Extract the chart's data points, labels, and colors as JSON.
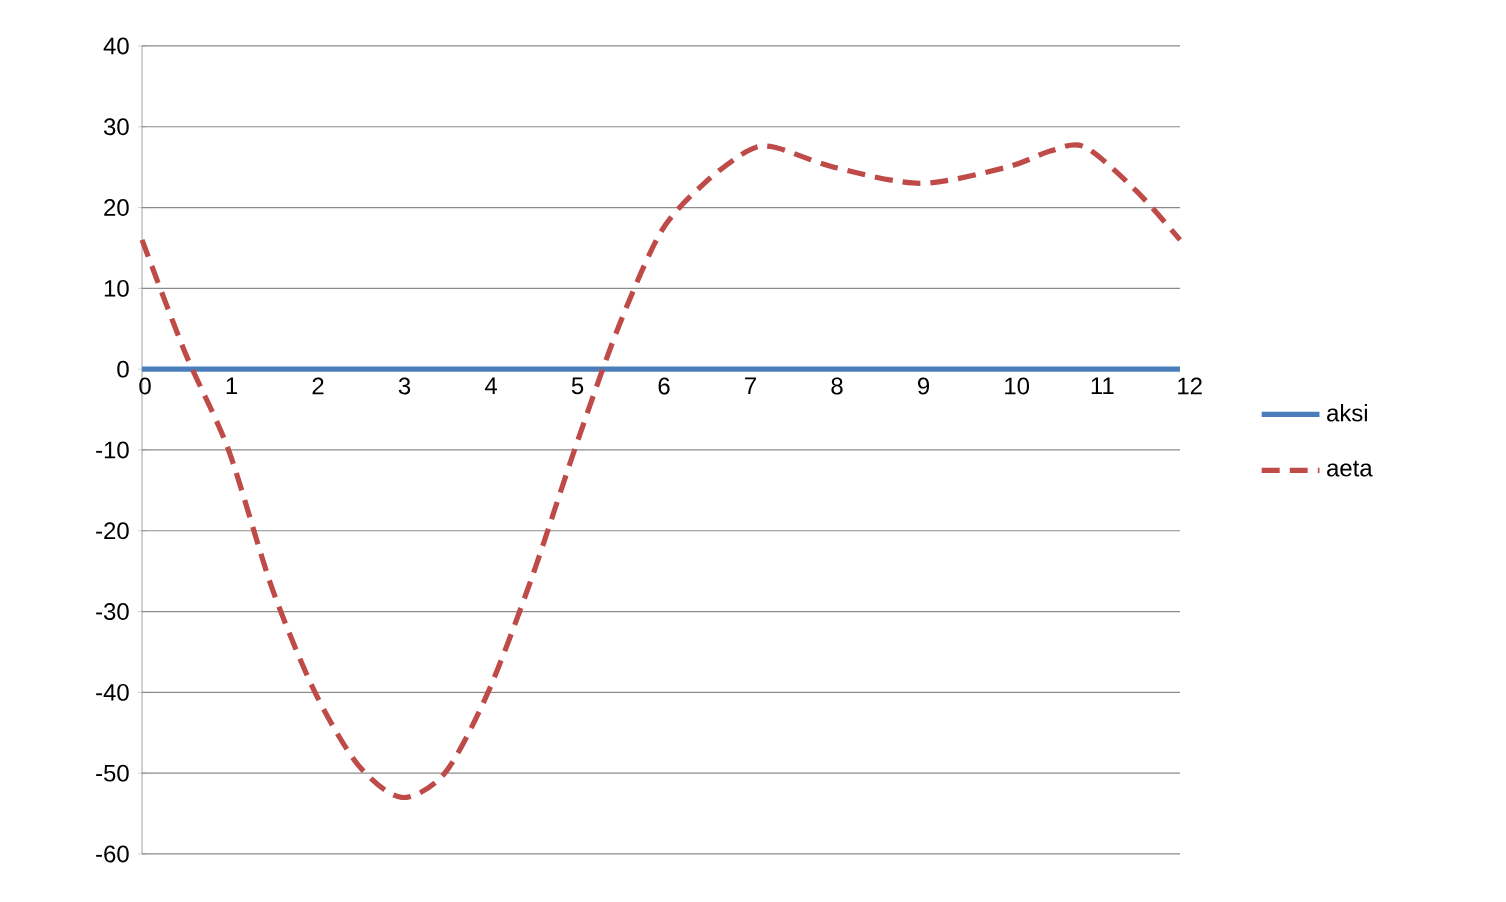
{
  "chart_data": {
    "type": "line",
    "series": [
      {
        "name": "aksi",
        "color": "#4a7ebb",
        "line_style": "solid",
        "x": [
          0,
          12
        ],
        "values": [
          0,
          0
        ]
      },
      {
        "name": "aeta",
        "color": "#be4b48",
        "line_style": "dashed",
        "x": [
          0,
          0.5,
          1,
          1.5,
          2,
          2.5,
          3,
          3.5,
          4,
          4.5,
          5,
          5.5,
          6,
          6.5,
          7,
          7.3,
          8,
          9,
          10,
          10.5,
          10.9,
          11.5,
          12
        ],
        "values": [
          16,
          2,
          -10,
          -27,
          -40,
          -49,
          -53,
          -50,
          -40,
          -26,
          -10,
          5,
          17,
          23,
          27,
          27.5,
          25,
          23,
          25,
          27,
          27.5,
          22,
          16
        ]
      }
    ],
    "xlim": [
      0,
      12
    ],
    "ylim": [
      -60,
      40
    ],
    "xticks": [
      0,
      1,
      2,
      3,
      4,
      5,
      6,
      7,
      8,
      9,
      10,
      11,
      12
    ],
    "yticks": [
      -60,
      -50,
      -40,
      -30,
      -20,
      -10,
      0,
      10,
      20,
      30,
      40
    ],
    "grid": "y",
    "legend": "right",
    "marker": "none"
  }
}
